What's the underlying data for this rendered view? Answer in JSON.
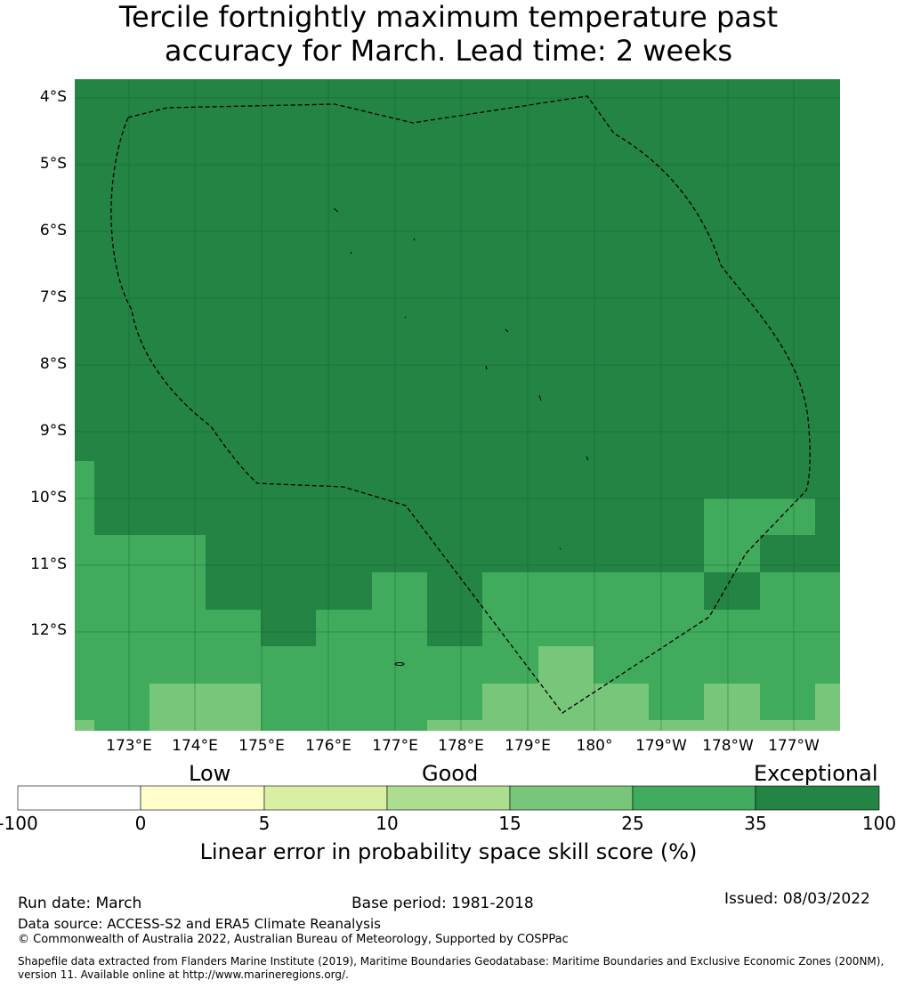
{
  "title_line1": "Tercile fortnightly maximum temperature past",
  "title_line2": "accuracy for March. Lead time: 2 weeks",
  "map": {
    "lat_labels": [
      "4°S",
      "5°S",
      "6°S",
      "7°S",
      "8°S",
      "9°S",
      "10°S",
      "11°S",
      "12°S"
    ],
    "lon_labels": [
      "173°E",
      "174°E",
      "175°E",
      "176°E",
      "177°E",
      "178°E",
      "179°E",
      "180°",
      "179°W",
      "178°W",
      "177°W"
    ],
    "lat_values": [
      -4,
      -5,
      -6,
      -7,
      -8,
      -9,
      -10,
      -11,
      -12
    ],
    "lon_values": [
      173,
      174,
      175,
      176,
      177,
      178,
      179,
      180,
      181,
      182,
      183
    ],
    "lon_range": [
      172.2,
      183.7
    ],
    "lat_range": [
      -13.25,
      -3.72
    ],
    "grid_lines": true,
    "skill_regions": [
      {
        "class": "35-100",
        "color": "#238443",
        "description": "exceptional skill across most of the domain"
      },
      {
        "class": "25-35",
        "color": "#41ab5d",
        "description": "southern and south-western areas"
      },
      {
        "class": "15-25",
        "color": "#78c679",
        "description": "southern edge patches"
      }
    ],
    "eez_boundary": "dashed"
  },
  "legend": {
    "category_low": "Low",
    "category_good": "Good",
    "category_exceptional": "Exceptional",
    "bins": [
      {
        "from": -100,
        "to": 0,
        "color": "#ffffff"
      },
      {
        "from": 0,
        "to": 5,
        "color": "#ffffcc"
      },
      {
        "from": 5,
        "to": 10,
        "color": "#d9f0a3"
      },
      {
        "from": 10,
        "to": 15,
        "color": "#addd8e"
      },
      {
        "from": 15,
        "to": 25,
        "color": "#78c679"
      },
      {
        "from": 25,
        "to": 35,
        "color": "#41ab5d"
      },
      {
        "from": 35,
        "to": 100,
        "color": "#238443"
      }
    ],
    "ticks": [
      "-100",
      "0",
      "5",
      "10",
      "15",
      "25",
      "35",
      "100"
    ],
    "axis_label": "Linear error in probability space skill score (%)"
  },
  "footer": {
    "run_date": "Run date: March",
    "base_period": "Base period: 1981-2018",
    "issued": "Issued: 08/03/2022",
    "data_source": "Data source: ACCESS-S2 and ERA5 Climate Reanalysis",
    "copyright": "© Commonwealth of Australia 2022, Australian Bureau of Meteorology, Supported by COSPPac",
    "shapefile_line1": "Shapefile data extracted from Flanders Marine Institute (2019), Maritime Boundaries Geodatabase: Maritime Boundaries and Exclusive Economic Zones (200NM),",
    "shapefile_line2": "version 11. Available online at http://www.marineregions.org/."
  }
}
